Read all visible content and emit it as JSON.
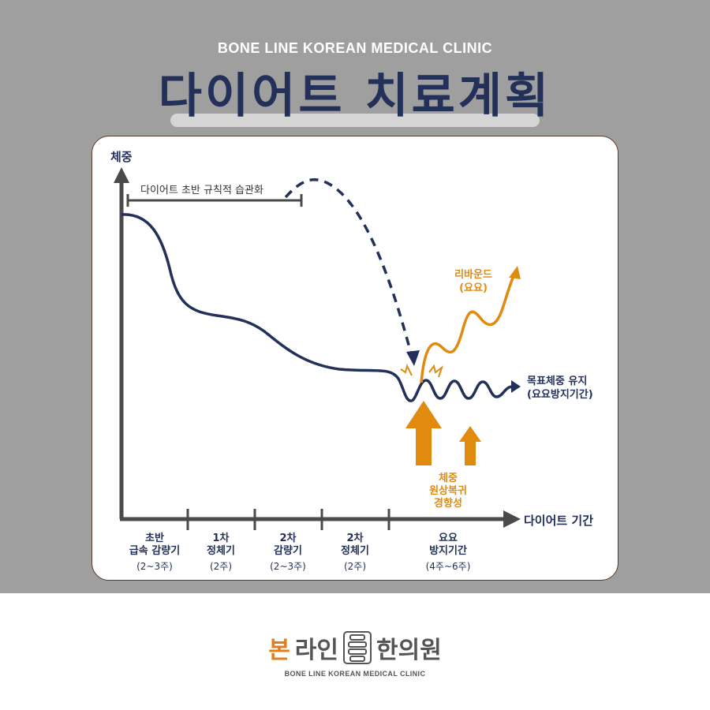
{
  "header": {
    "clinic_name": "BONE LINE KOREAN MEDICAL CLINIC",
    "title": "다이어트 치료계획"
  },
  "diagram": {
    "y_axis_label": "체중",
    "x_axis_label": "다이어트 기간",
    "habit_label": "다이어트 초반 규칙적 습관화",
    "rebound_label_line1": "리바운드",
    "rebound_label_line2": "(요요)",
    "maintain_label_line1": "목표체중 유지",
    "maintain_label_line2": "(요요방지기간)",
    "homeostasis_line1": "체중",
    "homeostasis_line2": "원상복귀",
    "homeostasis_line3": "경향성",
    "phases": [
      {
        "line1": "초반",
        "line2": "급속 감량기",
        "line3": "(2~3주)"
      },
      {
        "line1": "1차",
        "line2": "정체기",
        "line3": "(2주)"
      },
      {
        "line1": "2차",
        "line2": "감량기",
        "line3": "(2~3주)"
      },
      {
        "line1": "2차",
        "line2": "정체기",
        "line3": "(2주)"
      },
      {
        "line1": "요요",
        "line2": "방지기간",
        "line3": "(4주~6주)"
      }
    ],
    "colors": {
      "navy": "#22305a",
      "orange": "#e08a10",
      "axis": "#4a4a4a"
    }
  },
  "footer": {
    "logo_bon": "본",
    "logo_rain": "라인",
    "logo_hanuiwon": "한의원",
    "clinic_name": "BONE LINE KOREAN MEDICAL CLINIC"
  }
}
